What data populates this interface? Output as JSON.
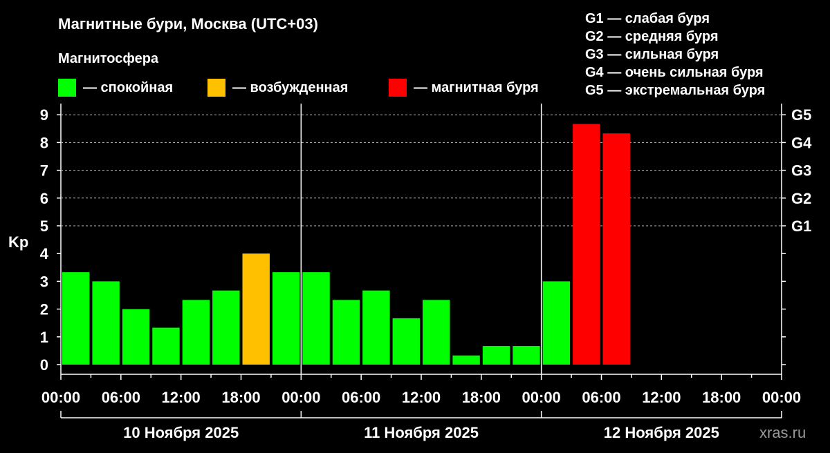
{
  "title": "Магнитные бури, Москва (UTC+03)",
  "legend": {
    "heading": "Магнитосфера",
    "items": [
      {
        "label": "— спокойная",
        "color": "#00ff00"
      },
      {
        "label": "— возбужденная",
        "color": "#ffc000"
      },
      {
        "label": "— магнитная буря",
        "color": "#ff0000"
      }
    ]
  },
  "g_scale": [
    "G1 — слабая буря",
    "G2 — средняя буря",
    "G3 — сильная буря",
    "G4 — очень сильная буря",
    "G5 — экстремальная буря"
  ],
  "watermark": "xras.ru",
  "chart_data": {
    "type": "bar",
    "ylabel": "Kp",
    "ylim": [
      0,
      9
    ],
    "yticks": [
      "0",
      "1",
      "2",
      "3",
      "4",
      "5",
      "6",
      "7",
      "8",
      "9"
    ],
    "right_ticks": [
      {
        "kp": 5,
        "label": "G1"
      },
      {
        "kp": 6,
        "label": "G2"
      },
      {
        "kp": 7,
        "label": "G3"
      },
      {
        "kp": 8,
        "label": "G4"
      },
      {
        "kp": 9,
        "label": "G5"
      }
    ],
    "grid": "dashed horizontal at 5, 6, 7, 8, 9",
    "xtick_labels": [
      "00:00",
      "06:00",
      "12:00",
      "18:00",
      "00:00",
      "06:00",
      "12:00",
      "18:00",
      "00:00",
      "06:00",
      "12:00",
      "18:00",
      "00:00"
    ],
    "days": [
      "10 Ноября 2025",
      "11 Ноября 2025",
      "12 Ноября 2025"
    ],
    "interval_hours": 3,
    "values": [
      3.33,
      3.0,
      2.0,
      1.33,
      2.33,
      2.67,
      4.0,
      3.33,
      3.33,
      2.33,
      2.67,
      1.67,
      2.33,
      0.33,
      0.67,
      0.67,
      3.0,
      8.67,
      8.33
    ],
    "status": [
      "quiet",
      "quiet",
      "quiet",
      "quiet",
      "quiet",
      "quiet",
      "active",
      "quiet",
      "quiet",
      "quiet",
      "quiet",
      "quiet",
      "quiet",
      "quiet",
      "quiet",
      "quiet",
      "quiet",
      "storm",
      "storm"
    ],
    "status_colors": {
      "quiet": "#00ff00",
      "active": "#ffc000",
      "storm": "#ff0000"
    }
  }
}
